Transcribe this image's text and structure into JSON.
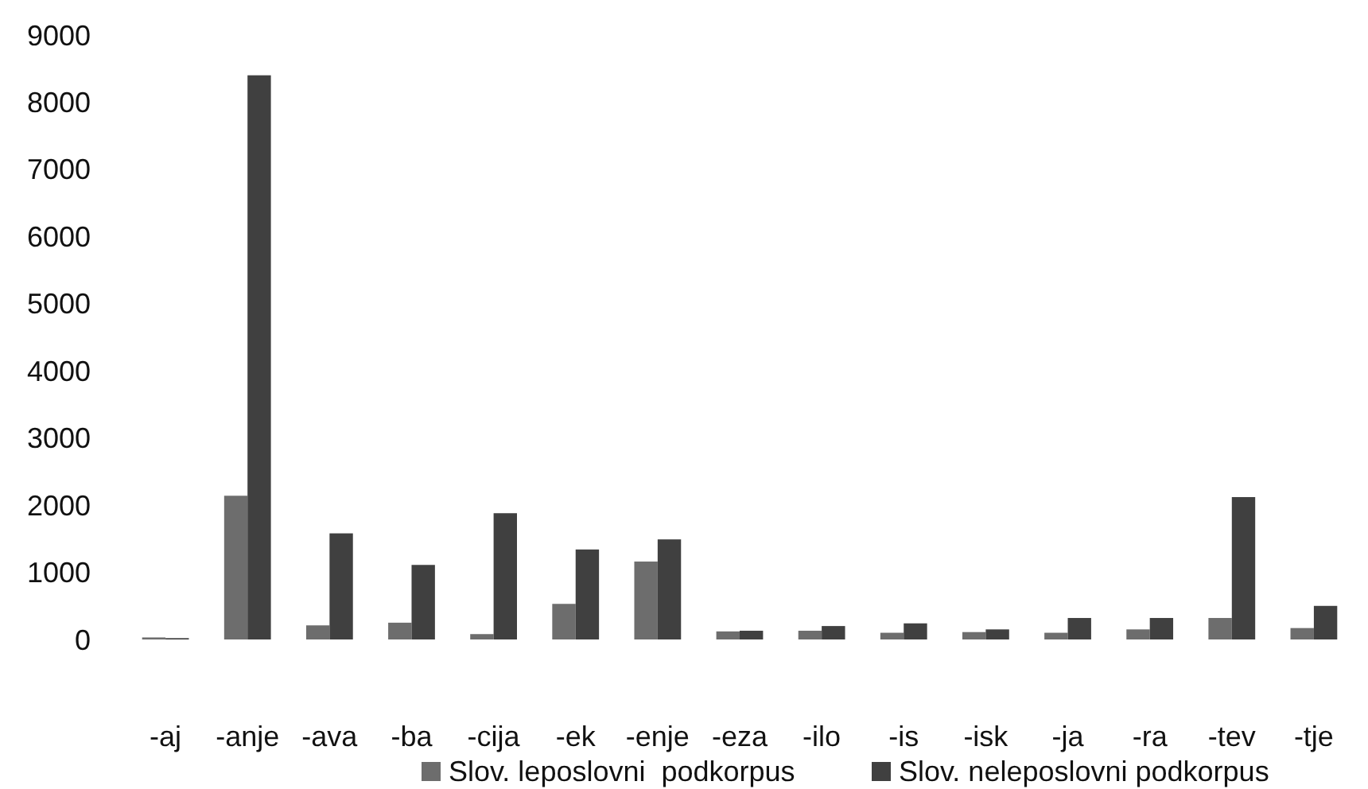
{
  "chart_data": {
    "type": "bar",
    "categories": [
      "-aj",
      "-anje",
      "-ava",
      "-ba",
      "-cija",
      "-ek",
      "-enje",
      "-eza",
      "-ilo",
      "-is",
      "-isk",
      "-ja",
      "-ra",
      "-tev",
      "-tje"
    ],
    "series": [
      {
        "name": "Slov. leposlovni  podkorpus",
        "color": "#6d6d6d",
        "values": [
          30,
          2140,
          210,
          250,
          80,
          530,
          1160,
          120,
          130,
          100,
          110,
          100,
          150,
          320,
          170
        ]
      },
      {
        "name": "Slov. neleposlovni podkorpus",
        "color": "#404040",
        "values": [
          20,
          8400,
          1580,
          1110,
          1880,
          1340,
          1490,
          130,
          200,
          240,
          150,
          320,
          320,
          2120,
          500
        ]
      }
    ],
    "ylim": [
      0,
      9000
    ],
    "yticks": [
      0,
      1000,
      2000,
      3000,
      4000,
      5000,
      6000,
      7000,
      8000,
      9000
    ],
    "grid": false,
    "legend": "bottom"
  }
}
